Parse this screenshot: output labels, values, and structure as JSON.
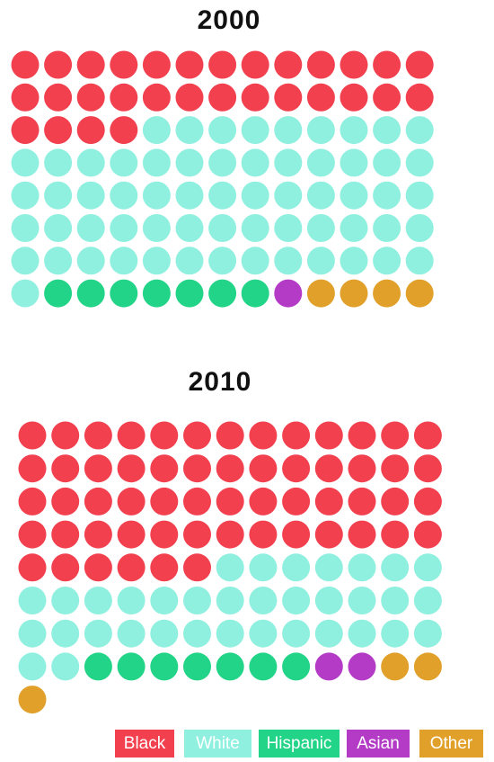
{
  "chart_data": [
    {
      "type": "waffle",
      "title": "2000",
      "categories": [
        "Black",
        "White",
        "Hispanic",
        "Asian",
        "Other"
      ],
      "values": [
        30,
        62,
        7,
        1,
        4
      ],
      "colors": [
        "#f2404f",
        "#8ff0e0",
        "#22d487",
        "#b33bc6",
        "#e0a02a"
      ]
    },
    {
      "type": "waffle",
      "title": "2010",
      "categories": [
        "Black",
        "White",
        "Hispanic",
        "Asian",
        "Other"
      ],
      "values": [
        58,
        35,
        7,
        2,
        3
      ],
      "colors": [
        "#f2404f",
        "#8ff0e0",
        "#22d487",
        "#b33bc6",
        "#e0a02a"
      ]
    }
  ]
}
